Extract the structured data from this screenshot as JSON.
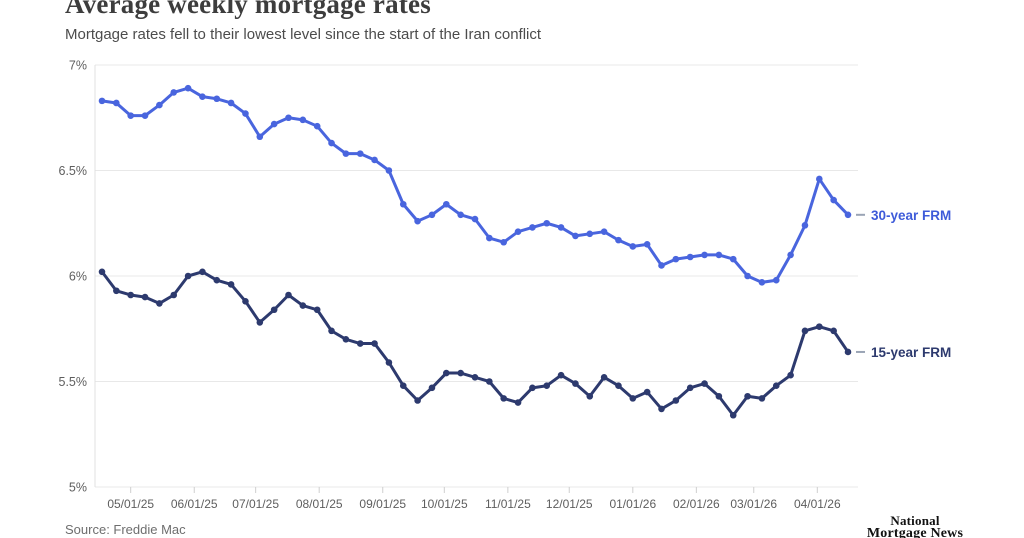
{
  "header": {
    "title": "Average weekly mortgage rates",
    "subtitle": "Mortgage rates fell to their lowest level since the start of the Iran conflict"
  },
  "footer": {
    "source": "Source: Freddie Mac",
    "logo_line1": "National",
    "logo_line2": "Mortgage News"
  },
  "chart_data": {
    "type": "line",
    "title": "Average weekly mortgage rates",
    "subtitle": "Mortgage rates fell to their lowest level since the start of the Iran conflict",
    "xlabel": "",
    "ylabel": "",
    "ylim": [
      5,
      7
    ],
    "grid": "horizontal",
    "legend_position": "end-of-line",
    "x_frequency": "weekly",
    "y_ticks": [
      {
        "label": "7%",
        "value": 7
      },
      {
        "label": "6.5%",
        "value": 6.5
      },
      {
        "label": "6%",
        "value": 6
      },
      {
        "label": "5.5%",
        "value": 5.5
      },
      {
        "label": "5%",
        "value": 5
      }
    ],
    "x_ticks": [
      {
        "label": "05/01/25",
        "pos": 2
      },
      {
        "label": "06/01/25",
        "pos": 6.43
      },
      {
        "label": "07/01/25",
        "pos": 10.71
      },
      {
        "label": "08/01/25",
        "pos": 15.14
      },
      {
        "label": "09/01/25",
        "pos": 19.57
      },
      {
        "label": "10/01/25",
        "pos": 23.86
      },
      {
        "label": "11/01/25",
        "pos": 28.29
      },
      {
        "label": "12/01/25",
        "pos": 32.57
      },
      {
        "label": "01/01/26",
        "pos": 37.0
      },
      {
        "label": "02/01/26",
        "pos": 41.43
      },
      {
        "label": "03/01/26",
        "pos": 45.43
      },
      {
        "label": "04/01/26",
        "pos": 49.86
      }
    ],
    "series": [
      {
        "name": "30-year FRM",
        "color": "#4965DE",
        "legend_color": "#3E5BD9",
        "values": [
          6.83,
          6.82,
          6.76,
          6.76,
          6.81,
          6.87,
          6.89,
          6.85,
          6.84,
          6.82,
          6.77,
          6.66,
          6.72,
          6.75,
          6.74,
          6.71,
          6.63,
          6.58,
          6.58,
          6.55,
          6.5,
          6.34,
          6.26,
          6.29,
          6.34,
          6.29,
          6.27,
          6.18,
          6.16,
          6.21,
          6.23,
          6.25,
          6.23,
          6.19,
          6.2,
          6.21,
          6.17,
          6.14,
          6.15,
          6.05,
          6.08,
          6.09,
          6.1,
          6.1,
          6.08,
          6.0,
          5.97,
          5.98,
          6.1,
          6.24,
          6.46,
          6.36,
          6.29
        ]
      },
      {
        "name": "15-year FRM",
        "color": "#2D3A6E",
        "legend_color": "#2D3A6E",
        "values": [
          6.02,
          5.93,
          5.91,
          5.9,
          5.87,
          5.91,
          6.0,
          6.02,
          5.98,
          5.96,
          5.88,
          5.78,
          5.84,
          5.91,
          5.86,
          5.84,
          5.74,
          5.7,
          5.68,
          5.68,
          5.59,
          5.48,
          5.41,
          5.47,
          5.54,
          5.54,
          5.52,
          5.5,
          5.42,
          5.4,
          5.47,
          5.48,
          5.53,
          5.49,
          5.43,
          5.52,
          5.48,
          5.42,
          5.45,
          5.37,
          5.41,
          5.47,
          5.49,
          5.43,
          5.34,
          5.43,
          5.42,
          5.48,
          5.53,
          5.74,
          5.76,
          5.74,
          5.64
        ]
      }
    ]
  }
}
